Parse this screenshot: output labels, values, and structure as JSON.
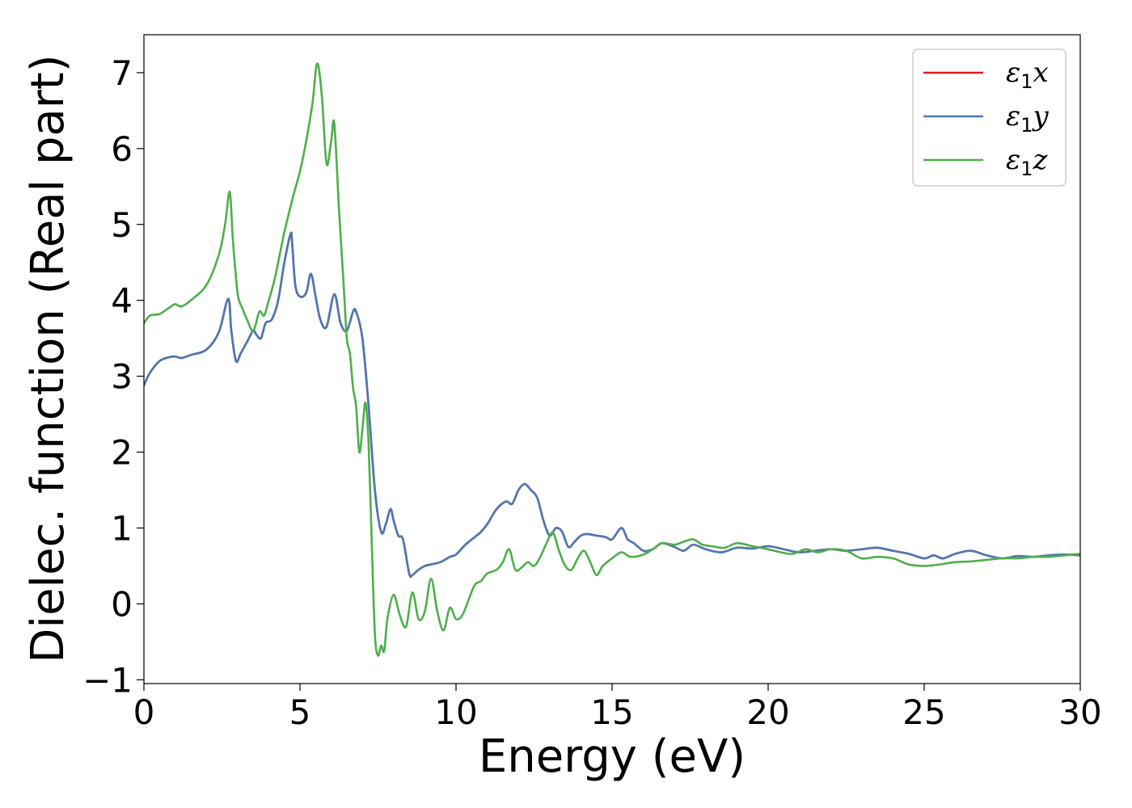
{
  "chart_data": {
    "type": "line",
    "xlabel": "Energy (eV)",
    "ylabel": "Dielec. function (Real part)",
    "xlim": [
      0,
      30
    ],
    "ylim": [
      -1.05,
      7.5
    ],
    "xticks": [
      0,
      5,
      10,
      15,
      20,
      25,
      30
    ],
    "yticks": [
      -1,
      0,
      1,
      2,
      3,
      4,
      5,
      6,
      7
    ],
    "xtick_labels": [
      "0",
      "5",
      "10",
      "15",
      "20",
      "25",
      "30"
    ],
    "ytick_labels": [
      "−1",
      "0",
      "1",
      "2",
      "3",
      "4",
      "5",
      "6",
      "7"
    ],
    "grid": false,
    "legend_position": "top-right",
    "series": [
      {
        "name": "ε1x",
        "legend_base": "ε",
        "legend_sub": "1",
        "legend_suffix": "x",
        "color": "#e41a1c",
        "x": [
          0,
          0.2,
          0.5,
          0.8,
          1.0,
          1.2,
          1.5,
          2.0,
          2.4,
          2.7,
          2.8,
          2.95,
          3.1,
          3.3,
          3.5,
          3.6,
          3.75,
          3.9,
          4.1,
          4.3,
          4.5,
          4.7,
          4.75,
          4.85,
          5.0,
          5.2,
          5.35,
          5.5,
          5.65,
          5.85,
          6.1,
          6.3,
          6.5,
          6.7,
          6.8,
          7.0,
          7.2,
          7.4,
          7.6,
          7.75,
          7.9,
          8.0,
          8.15,
          8.3,
          8.5,
          8.6,
          8.8,
          9.0,
          9.2,
          9.5,
          9.8,
          10.0,
          10.3,
          10.6,
          10.8,
          11.0,
          11.3,
          11.6,
          11.8,
          12.0,
          12.2,
          12.4,
          12.6,
          12.8,
          13.0,
          13.2,
          13.4,
          13.6,
          13.8,
          14.0,
          14.2,
          14.5,
          14.8,
          15.0,
          15.3,
          15.5,
          15.7,
          16.0,
          16.3,
          16.6,
          17.0,
          17.3,
          17.6,
          18.0,
          18.5,
          19.0,
          19.5,
          20.0,
          20.5,
          21.0,
          21.5,
          22.0,
          22.5,
          23.0,
          23.5,
          24.0,
          24.5,
          25.0,
          25.3,
          25.6,
          26.0,
          26.5,
          27.0,
          27.5,
          28.0,
          28.5,
          29.0,
          29.5,
          30.0
        ],
        "y": [
          2.88,
          3.05,
          3.2,
          3.25,
          3.26,
          3.24,
          3.28,
          3.35,
          3.58,
          4.02,
          3.6,
          3.2,
          3.3,
          3.45,
          3.6,
          3.55,
          3.5,
          3.7,
          3.75,
          4.0,
          4.5,
          4.88,
          4.75,
          4.2,
          4.05,
          4.1,
          4.35,
          4.05,
          3.75,
          3.65,
          4.08,
          3.7,
          3.6,
          3.85,
          3.85,
          3.5,
          2.6,
          1.5,
          0.95,
          1.05,
          1.25,
          1.1,
          0.9,
          0.85,
          0.4,
          0.38,
          0.45,
          0.5,
          0.52,
          0.55,
          0.62,
          0.65,
          0.78,
          0.88,
          0.95,
          1.05,
          1.25,
          1.35,
          1.32,
          1.5,
          1.58,
          1.5,
          1.4,
          1.1,
          0.9,
          1.0,
          0.95,
          0.75,
          0.82,
          0.9,
          0.92,
          0.9,
          0.88,
          0.85,
          1.0,
          0.85,
          0.8,
          0.7,
          0.72,
          0.8,
          0.75,
          0.7,
          0.78,
          0.72,
          0.68,
          0.74,
          0.73,
          0.76,
          0.72,
          0.68,
          0.7,
          0.72,
          0.7,
          0.72,
          0.74,
          0.7,
          0.66,
          0.6,
          0.64,
          0.6,
          0.66,
          0.7,
          0.64,
          0.6,
          0.63,
          0.62,
          0.64,
          0.65,
          0.64
        ]
      },
      {
        "name": "ε1y",
        "legend_base": "ε",
        "legend_sub": "1",
        "legend_suffix": "y",
        "color": "#4a79b5",
        "x": [
          0,
          0.2,
          0.5,
          0.8,
          1.0,
          1.2,
          1.5,
          2.0,
          2.4,
          2.7,
          2.8,
          2.95,
          3.1,
          3.3,
          3.5,
          3.6,
          3.75,
          3.9,
          4.1,
          4.3,
          4.5,
          4.7,
          4.75,
          4.85,
          5.0,
          5.2,
          5.35,
          5.5,
          5.65,
          5.85,
          6.1,
          6.3,
          6.5,
          6.7,
          6.8,
          7.0,
          7.2,
          7.4,
          7.6,
          7.75,
          7.9,
          8.0,
          8.15,
          8.3,
          8.5,
          8.6,
          8.8,
          9.0,
          9.2,
          9.5,
          9.8,
          10.0,
          10.3,
          10.6,
          10.8,
          11.0,
          11.3,
          11.6,
          11.8,
          12.0,
          12.2,
          12.4,
          12.6,
          12.8,
          13.0,
          13.2,
          13.4,
          13.6,
          13.8,
          14.0,
          14.2,
          14.5,
          14.8,
          15.0,
          15.3,
          15.5,
          15.7,
          16.0,
          16.3,
          16.6,
          17.0,
          17.3,
          17.6,
          18.0,
          18.5,
          19.0,
          19.5,
          20.0,
          20.5,
          21.0,
          21.5,
          22.0,
          22.5,
          23.0,
          23.5,
          24.0,
          24.5,
          25.0,
          25.3,
          25.6,
          26.0,
          26.5,
          27.0,
          27.5,
          28.0,
          28.5,
          29.0,
          29.5,
          30.0
        ],
        "y": [
          2.88,
          3.05,
          3.2,
          3.25,
          3.26,
          3.24,
          3.28,
          3.35,
          3.58,
          4.02,
          3.6,
          3.2,
          3.3,
          3.45,
          3.6,
          3.55,
          3.5,
          3.7,
          3.75,
          4.0,
          4.5,
          4.88,
          4.75,
          4.2,
          4.05,
          4.1,
          4.35,
          4.05,
          3.75,
          3.65,
          4.08,
          3.7,
          3.6,
          3.85,
          3.85,
          3.5,
          2.6,
          1.5,
          0.95,
          1.05,
          1.25,
          1.1,
          0.9,
          0.85,
          0.4,
          0.38,
          0.45,
          0.5,
          0.52,
          0.55,
          0.62,
          0.65,
          0.78,
          0.88,
          0.95,
          1.05,
          1.25,
          1.35,
          1.32,
          1.5,
          1.58,
          1.5,
          1.4,
          1.1,
          0.9,
          1.0,
          0.95,
          0.75,
          0.82,
          0.9,
          0.92,
          0.9,
          0.88,
          0.85,
          1.0,
          0.85,
          0.8,
          0.7,
          0.72,
          0.8,
          0.75,
          0.7,
          0.78,
          0.72,
          0.68,
          0.74,
          0.73,
          0.76,
          0.72,
          0.68,
          0.7,
          0.72,
          0.7,
          0.72,
          0.74,
          0.7,
          0.66,
          0.6,
          0.64,
          0.6,
          0.66,
          0.7,
          0.64,
          0.6,
          0.63,
          0.62,
          0.64,
          0.65,
          0.64
        ]
      },
      {
        "name": "ε1z",
        "legend_base": "ε",
        "legend_sub": "1",
        "legend_suffix": "z",
        "color": "#4daf4a",
        "x": [
          0,
          0.2,
          0.5,
          0.8,
          1.0,
          1.2,
          1.5,
          2.0,
          2.4,
          2.6,
          2.75,
          2.85,
          3.0,
          3.15,
          3.3,
          3.5,
          3.7,
          3.85,
          4.0,
          4.2,
          4.5,
          4.8,
          5.0,
          5.2,
          5.4,
          5.55,
          5.7,
          5.85,
          6.0,
          6.1,
          6.25,
          6.4,
          6.5,
          6.6,
          6.7,
          6.8,
          6.9,
          7.0,
          7.1,
          7.2,
          7.3,
          7.4,
          7.5,
          7.6,
          7.7,
          7.8,
          8.0,
          8.2,
          8.4,
          8.6,
          8.8,
          9.0,
          9.2,
          9.4,
          9.6,
          9.8,
          10.0,
          10.2,
          10.4,
          10.6,
          10.8,
          11.0,
          11.3,
          11.5,
          11.7,
          11.9,
          12.1,
          12.3,
          12.5,
          12.7,
          12.9,
          13.1,
          13.3,
          13.5,
          13.7,
          13.9,
          14.1,
          14.3,
          14.5,
          14.7,
          15.0,
          15.3,
          15.6,
          16.0,
          16.3,
          16.6,
          17.0,
          17.3,
          17.6,
          17.9,
          18.2,
          18.6,
          19.0,
          19.5,
          20.0,
          20.4,
          20.8,
          21.2,
          21.6,
          22.0,
          22.5,
          23.0,
          23.5,
          24.0,
          24.5,
          25.0,
          25.5,
          26.0,
          26.5,
          27.0,
          27.5,
          28.0,
          28.5,
          29.0,
          29.5,
          30.0
        ],
        "y": [
          3.7,
          3.8,
          3.82,
          3.9,
          3.95,
          3.92,
          4.0,
          4.2,
          4.6,
          5.0,
          5.43,
          4.8,
          4.1,
          3.9,
          3.75,
          3.6,
          3.85,
          3.8,
          4.0,
          4.3,
          4.9,
          5.4,
          5.7,
          6.1,
          6.6,
          7.12,
          6.7,
          5.8,
          6.1,
          6.33,
          5.2,
          4.2,
          3.5,
          3.3,
          2.85,
          2.6,
          2.0,
          2.3,
          2.65,
          2.1,
          0.8,
          -0.4,
          -0.68,
          -0.55,
          -0.62,
          -0.2,
          0.12,
          -0.15,
          -0.3,
          0.15,
          -0.2,
          -0.1,
          0.33,
          -0.1,
          -0.35,
          -0.05,
          -0.2,
          -0.15,
          0.05,
          0.25,
          0.3,
          0.4,
          0.45,
          0.55,
          0.72,
          0.45,
          0.48,
          0.55,
          0.5,
          0.62,
          0.8,
          0.94,
          0.7,
          0.5,
          0.45,
          0.6,
          0.7,
          0.55,
          0.38,
          0.5,
          0.6,
          0.68,
          0.62,
          0.65,
          0.72,
          0.8,
          0.78,
          0.82,
          0.85,
          0.78,
          0.76,
          0.74,
          0.8,
          0.76,
          0.72,
          0.68,
          0.66,
          0.72,
          0.68,
          0.72,
          0.7,
          0.6,
          0.62,
          0.6,
          0.52,
          0.5,
          0.52,
          0.55,
          0.56,
          0.58,
          0.6,
          0.6,
          0.62,
          0.62,
          0.64,
          0.66
        ]
      }
    ]
  }
}
